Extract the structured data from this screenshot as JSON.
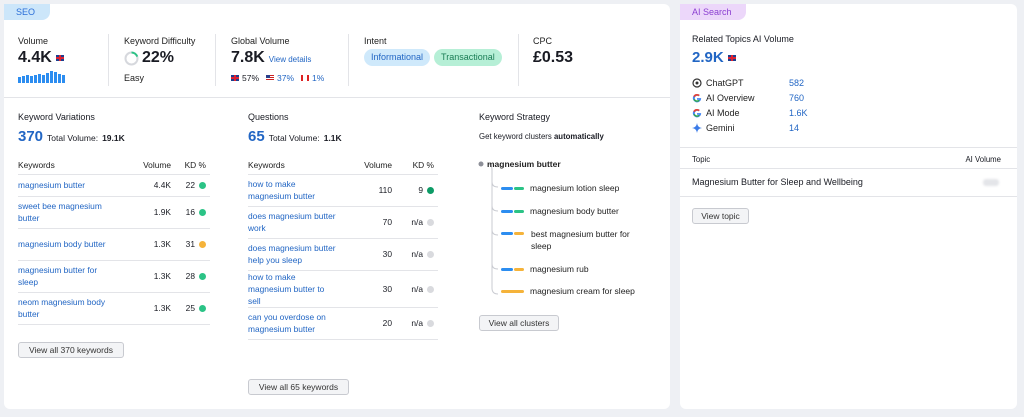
{
  "seo": {
    "tag": "SEO",
    "volume": {
      "label": "Volume",
      "value": "4.4K"
    },
    "difficulty": {
      "label": "Keyword Difficulty",
      "value": "22%",
      "level": "Easy"
    },
    "global": {
      "label": "Global Volume",
      "value": "7.8K",
      "link": "View details",
      "gb": "57%",
      "us": "37%",
      "ca": "1%"
    },
    "intent": {
      "label": "Intent",
      "chips": [
        "Informational",
        "Transactional"
      ]
    },
    "cpc": {
      "label": "CPC",
      "value": "£0.53"
    },
    "variations": {
      "title": "Keyword Variations",
      "count": "370",
      "total_label": "Total Volume:",
      "total": "19.1K",
      "headers": [
        "Keywords",
        "Volume",
        "KD %"
      ],
      "rows": [
        {
          "kw": "magnesium butter",
          "vol": "4.4K",
          "kd": "22",
          "color": "#2bc386"
        },
        {
          "kw": "sweet bee magnesium butter",
          "vol": "1.9K",
          "kd": "16",
          "color": "#2bc386"
        },
        {
          "kw": "magnesium body butter",
          "vol": "1.3K",
          "kd": "31",
          "color": "#f5b33a"
        },
        {
          "kw": "magnesium butter for sleep",
          "vol": "1.3K",
          "kd": "28",
          "color": "#2bc386"
        },
        {
          "kw": "neom magnesium body butter",
          "vol": "1.3K",
          "kd": "25",
          "color": "#2bc386"
        }
      ],
      "button": "View all 370 keywords"
    },
    "questions": {
      "title": "Questions",
      "count": "65",
      "total_label": "Total Volume:",
      "total": "1.1K",
      "headers": [
        "Keywords",
        "Volume",
        "KD %"
      ],
      "rows": [
        {
          "kw": "how to make magnesium butter",
          "vol": "110",
          "kd": "9",
          "color": "#0d9b66"
        },
        {
          "kw": "does magnesium butter work",
          "vol": "70",
          "kd": "n/a",
          "color": "#d9dade"
        },
        {
          "kw": "does magnesium butter help you sleep",
          "vol": "30",
          "kd": "n/a",
          "color": "#d9dade"
        },
        {
          "kw": "how to make magnesium butter to sell",
          "vol": "30",
          "kd": "n/a",
          "color": "#d9dade"
        },
        {
          "kw": "can you overdose on magnesium butter",
          "vol": "20",
          "kd": "n/a",
          "color": "#d9dade"
        }
      ],
      "button": "View all 65 keywords"
    },
    "strategy": {
      "title": "Keyword Strategy",
      "subtitle_a": "Get keyword clusters",
      "subtitle_b": "automatically",
      "root": "magnesium butter",
      "items": [
        "magnesium lotion sleep",
        "magnesium body butter",
        "best magnesium butter for sleep",
        "magnesium rub",
        "magnesium cream for sleep"
      ],
      "button": "View all clusters"
    }
  },
  "ai": {
    "tag": "AI Search",
    "title": "Related Topics AI Volume",
    "value": "2.9K",
    "sources": [
      {
        "name": "ChatGPT",
        "value": "582",
        "icon": "chatgpt-icon"
      },
      {
        "name": "AI Overview",
        "value": "760",
        "icon": "google-icon"
      },
      {
        "name": "AI Mode",
        "value": "1.6K",
        "icon": "google-icon"
      },
      {
        "name": "Gemini",
        "value": "14",
        "icon": "gemini-icon"
      }
    ],
    "col_topic": "Topic",
    "col_volume": "AI Volume",
    "topic": "Magnesium Butter for Sleep and Wellbeing",
    "button": "View topic"
  }
}
